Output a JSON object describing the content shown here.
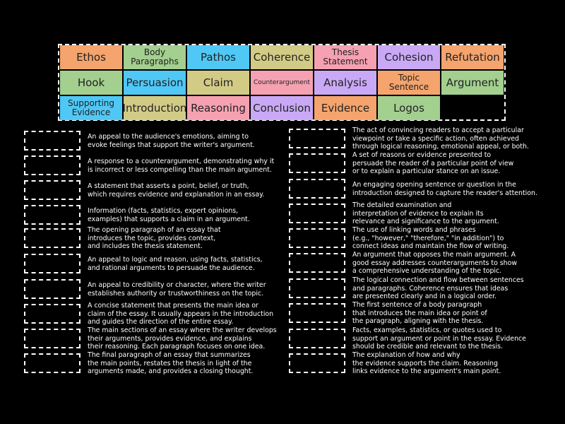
{
  "colors": {
    "orange": "#f4a46c",
    "green": "#a3cf8f",
    "blue": "#50c8f6",
    "olive": "#d2cb85",
    "pink": "#f5a1b2",
    "purple": "#c9a9f5",
    "background": "#000000"
  },
  "tiles": [
    {
      "label": "Ethos",
      "color": "orange"
    },
    {
      "label": "Body Paragraphs",
      "color": "green"
    },
    {
      "label": "Pathos",
      "color": "blue"
    },
    {
      "label": "Coherence",
      "color": "olive"
    },
    {
      "label": "Thesis Statement",
      "color": "pink"
    },
    {
      "label": "Cohesion",
      "color": "purple"
    },
    {
      "label": "Refutation",
      "color": "orange"
    },
    {
      "label": "Hook",
      "color": "green"
    },
    {
      "label": "Persuasion",
      "color": "blue"
    },
    {
      "label": "Claim",
      "color": "olive"
    },
    {
      "label": "Counterargument",
      "color": "pink"
    },
    {
      "label": "Analysis",
      "color": "purple"
    },
    {
      "label": "Topic Sentence",
      "color": "orange"
    },
    {
      "label": "Argument",
      "color": "green"
    },
    {
      "label": "Supporting Evidence",
      "color": "blue"
    },
    {
      "label": "Introduction",
      "color": "olive"
    },
    {
      "label": "Reasoning",
      "color": "pink"
    },
    {
      "label": "Conclusion",
      "color": "purple"
    },
    {
      "label": "Evidence",
      "color": "orange"
    },
    {
      "label": "Logos",
      "color": "green"
    }
  ],
  "definitions_left": [
    "An appeal to the audience's emotions, aiming to\nevoke feelings that support the writer's argument.",
    "A response to a counterargument, demonstrating why it\nis incorrect or less compelling than the main argument.",
    "A statement that asserts a point, belief, or truth,\nwhich requires evidence and explanation in an essay.",
    "Information (facts, statistics, expert opinions,\nexamples) that supports a claim in an argument.",
    "The opening paragraph of an essay that\nintroduces the topic, provides context,\nand includes the thesis statement.",
    "An appeal to logic and reason, using facts, statistics,\nand rational arguments to persuade the audience.",
    "An appeal to credibility or character, where the writer\nestablishes authority or trustworthiness on the topic.",
    "A concise statement that presents the main idea or\nclaim of the essay. It usually appears in the introduction\nand guides the direction of the entire essay.",
    "The main sections of an essay where the writer develops\ntheir arguments, provides evidence, and explains\ntheir reasoning. Each paragraph focuses on one idea.",
    "The final paragraph of an essay that summarizes\nthe main points, restates the thesis in light of the\narguments made, and provides a closing thought."
  ],
  "definitions_right": [
    "The act of convincing readers to accept a particular\nviewpoint or take a specific action, often achieved\nthrough logical reasoning, emotional appeal, or both.",
    "A set of reasons or evidence presented to\npersuade the reader of a particular point of view\nor to explain a particular stance on an issue.",
    "An engaging opening sentence or question in the\nintroduction designed to capture the reader's attention.",
    "The detailed examination and\ninterpretation of evidence to explain its\nrelevance and significance to the argument.",
    "The use of linking words and phrases\n(e.g., \"however,\" \"therefore,\" \"in addition\") to\nconnect ideas and maintain the flow of writing.",
    "An argument that opposes the main argument. A\ngood essay addresses counterarguments to show\na comprehensive understanding of the topic.",
    "The logical connection and flow between sentences\nand paragraphs. Coherence ensures that ideas\nare presented clearly and in a logical order.",
    "The first sentence of a body paragraph\nthat introduces the main idea or point of\nthe paragraph, aligning with the thesis.",
    "Facts, examples, statistics, or quotes used to\nsupport an argument or point in the essay. Evidence\nshould be credible and relevant to the thesis.",
    "The explanation of how and why\nthe evidence supports the claim. Reasoning\nlinks evidence to the argument's main point."
  ]
}
